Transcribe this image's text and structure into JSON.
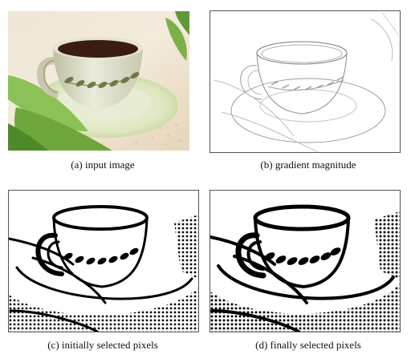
{
  "figure": {
    "panels": [
      {
        "id": "a",
        "caption": "(a)  input image"
      },
      {
        "id": "b",
        "caption": "(b)  gradient magnitude"
      },
      {
        "id": "c",
        "caption": "(c)  initially selected pixels"
      },
      {
        "id": "d",
        "caption": "(d)  finally selected pixels"
      }
    ]
  }
}
